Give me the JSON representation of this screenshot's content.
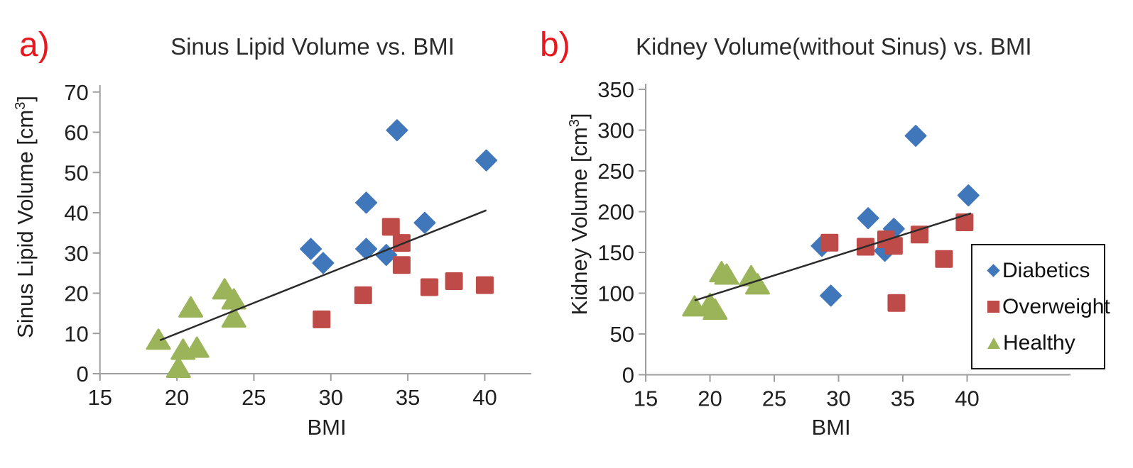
{
  "panel_labels": {
    "a": "a)",
    "b": "b)"
  },
  "colors": {
    "diabetics": "#4076BA",
    "overweight": "#BF4B48",
    "healthy": "#9BB45A",
    "trendline": "#2b2b2b",
    "axis": "#9E9E9E",
    "tick_text": "#1f1f1f",
    "panel_label": "#E8191E",
    "background": "#FFFFFF"
  },
  "legend": {
    "position": "bottom-right-of-chart-b",
    "items": [
      {
        "label": "Diabetics",
        "key": "diabetics",
        "marker": "diamond"
      },
      {
        "label": "Overweight",
        "key": "overweight",
        "marker": "square"
      },
      {
        "label": "Healthy",
        "key": "healthy",
        "marker": "triangle"
      }
    ]
  },
  "chart_data": [
    {
      "id": "sinus-lipid-volume",
      "type": "scatter",
      "title": "Sinus Lipid Volume vs. BMI",
      "xlabel": "BMI",
      "ylabel": "Sinus Lipid Volume [cm³]",
      "ylabel_parts": {
        "base": "Sinus Lipid Volume [cm",
        "sup": "3",
        "end": "]"
      },
      "xlim": [
        15,
        43
      ],
      "ylim": [
        0,
        70
      ],
      "xticks": [
        15,
        20,
        25,
        30,
        35,
        40
      ],
      "yticks": [
        0,
        10,
        20,
        30,
        40,
        50,
        60,
        70
      ],
      "grid": false,
      "series": [
        {
          "name": "Diabetics",
          "key": "diabetics",
          "marker": "diamond",
          "points": [
            [
              28.7,
              31
            ],
            [
              29.5,
              27.5
            ],
            [
              32.3,
              42.5
            ],
            [
              32.3,
              31
            ],
            [
              33.6,
              29.5
            ],
            [
              34.3,
              60.5
            ],
            [
              36.1,
              37.5
            ],
            [
              40.1,
              53
            ]
          ]
        },
        {
          "name": "Overweight",
          "key": "overweight",
          "marker": "square",
          "points": [
            [
              29.4,
              13.5
            ],
            [
              32.1,
              19.5
            ],
            [
              33.9,
              36.5
            ],
            [
              34.6,
              32.5
            ],
            [
              34.6,
              27
            ],
            [
              36.4,
              21.5
            ],
            [
              38,
              23
            ],
            [
              40,
              22
            ]
          ]
        },
        {
          "name": "Healthy",
          "key": "healthy",
          "marker": "triangle",
          "points": [
            [
              18.8,
              8.5
            ],
            [
              20.1,
              1.5
            ],
            [
              20.4,
              6
            ],
            [
              21.3,
              6.5
            ],
            [
              20.9,
              16.5
            ],
            [
              23.1,
              21
            ],
            [
              23.7,
              18.5
            ],
            [
              23.7,
              14
            ]
          ]
        }
      ],
      "trendline": {
        "x1": 18.9,
        "y1": 8.3,
        "x2": 40.1,
        "y2": 40.6
      }
    },
    {
      "id": "kidney-volume",
      "type": "scatter",
      "title": "Kidney Volume(without Sinus) vs. BMI",
      "xlabel": "BMI",
      "ylabel": "Kidney Volume [cm³]",
      "ylabel_parts": {
        "base": "Kidney Volume [cm",
        "sup": "3",
        "end": "]"
      },
      "xlim": [
        15,
        48
      ],
      "ylim": [
        0,
        350
      ],
      "xticks": [
        15,
        20,
        25,
        30,
        35,
        40
      ],
      "yticks": [
        0,
        50,
        100,
        150,
        200,
        250,
        300,
        350
      ],
      "grid": false,
      "series": [
        {
          "name": "Diabetics",
          "key": "diabetics",
          "marker": "diamond",
          "points": [
            [
              28.7,
              158
            ],
            [
              29.4,
              97
            ],
            [
              32.3,
              192
            ],
            [
              33.6,
              152
            ],
            [
              34.3,
              179
            ],
            [
              36,
              293
            ],
            [
              40.1,
              220
            ]
          ]
        },
        {
          "name": "Overweight",
          "key": "overweight",
          "marker": "square",
          "points": [
            [
              29.3,
              162
            ],
            [
              32.1,
              157
            ],
            [
              33.7,
              166
            ],
            [
              34.3,
              158
            ],
            [
              36.3,
              172
            ],
            [
              38.2,
              142
            ],
            [
              39.8,
              187
            ],
            [
              34.5,
              88
            ]
          ]
        },
        {
          "name": "Healthy",
          "key": "healthy",
          "marker": "triangle",
          "points": [
            [
              18.8,
              84
            ],
            [
              20,
              87
            ],
            [
              20.4,
              80
            ],
            [
              20.9,
              126
            ],
            [
              21.3,
              123
            ],
            [
              23.2,
              121
            ],
            [
              23.7,
              111
            ]
          ]
        }
      ],
      "trendline": {
        "x1": 18.8,
        "y1": 91,
        "x2": 40.3,
        "y2": 198
      }
    }
  ]
}
